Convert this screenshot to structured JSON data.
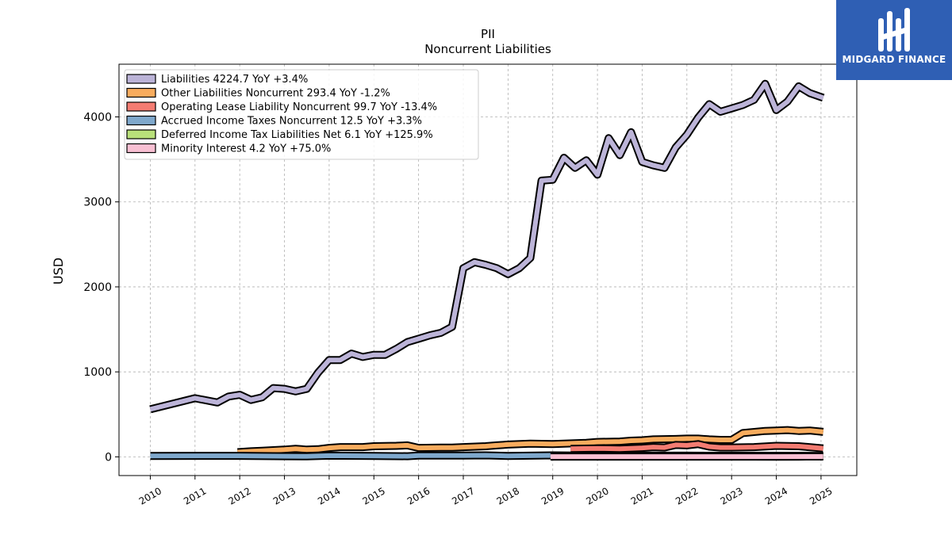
{
  "logo": {
    "text": "MIDGARD FINANCE",
    "background": "#2f5fb4"
  },
  "chart_data": {
    "type": "area",
    "title": "PII",
    "subtitle": "Noncurrent  Liabilities",
    "ylabel": "USD",
    "xlabel": "",
    "xlim": [
      2009.3,
      2025.8
    ],
    "ylim": [
      -220,
      4620
    ],
    "yticks": [
      0,
      1000,
      2000,
      3000,
      4000
    ],
    "xticks": [
      "2010",
      "2011",
      "2012",
      "2013",
      "2014",
      "2015",
      "2016",
      "2017",
      "2018",
      "2019",
      "2020",
      "2021",
      "2022",
      "2023",
      "2024",
      "2025"
    ],
    "grid": true,
    "legend_position": "top-left",
    "series": [
      {
        "name": "Liabilities",
        "legend": "Liabilities  4224.7 YoY +3.4%",
        "color": "#bcb4d8",
        "points": [
          [
            2010.0,
            560
          ],
          [
            2011.0,
            690
          ],
          [
            2011.5,
            640
          ],
          [
            2011.75,
            710
          ],
          [
            2012.0,
            730
          ],
          [
            2012.25,
            670
          ],
          [
            2012.5,
            700
          ],
          [
            2012.75,
            810
          ],
          [
            2013.0,
            800
          ],
          [
            2013.25,
            770
          ],
          [
            2013.5,
            800
          ],
          [
            2013.75,
            990
          ],
          [
            2014.0,
            1140
          ],
          [
            2014.25,
            1140
          ],
          [
            2014.5,
            1215
          ],
          [
            2014.75,
            1175
          ],
          [
            2015.0,
            1200
          ],
          [
            2015.25,
            1200
          ],
          [
            2015.5,
            1270
          ],
          [
            2015.75,
            1350
          ],
          [
            2016.0,
            1390
          ],
          [
            2016.25,
            1430
          ],
          [
            2016.5,
            1460
          ],
          [
            2016.75,
            1530
          ],
          [
            2017.0,
            2220
          ],
          [
            2017.25,
            2290
          ],
          [
            2017.5,
            2260
          ],
          [
            2017.75,
            2220
          ],
          [
            2018.0,
            2150
          ],
          [
            2018.25,
            2220
          ],
          [
            2018.5,
            2340
          ],
          [
            2018.75,
            3250
          ],
          [
            2019.0,
            3260
          ],
          [
            2019.25,
            3520
          ],
          [
            2019.5,
            3400
          ],
          [
            2019.75,
            3490
          ],
          [
            2020.0,
            3320
          ],
          [
            2020.25,
            3750
          ],
          [
            2020.5,
            3550
          ],
          [
            2020.75,
            3820
          ],
          [
            2021.0,
            3470
          ],
          [
            2021.25,
            3430
          ],
          [
            2021.5,
            3400
          ],
          [
            2021.75,
            3640
          ],
          [
            2022.0,
            3790
          ],
          [
            2022.25,
            3990
          ],
          [
            2022.5,
            4150
          ],
          [
            2022.75,
            4060
          ],
          [
            2023.0,
            4100
          ],
          [
            2023.25,
            4140
          ],
          [
            2023.5,
            4200
          ],
          [
            2023.75,
            4390
          ],
          [
            2024.0,
            4080
          ],
          [
            2024.25,
            4180
          ],
          [
            2024.5,
            4360
          ],
          [
            2024.75,
            4280
          ],
          [
            2025.05,
            4224.7
          ]
        ]
      },
      {
        "name": "Other Liabilities Noncurrent",
        "legend": "Other Liabilities Noncurrent  293.4 YoY -1.2%",
        "color": "#f8ac5e",
        "points": [
          [
            2011.95,
            55
          ],
          [
            2012.25,
            65
          ],
          [
            2012.5,
            72
          ],
          [
            2012.75,
            78
          ],
          [
            2013.0,
            85
          ],
          [
            2013.25,
            95
          ],
          [
            2013.5,
            85
          ],
          [
            2013.75,
            90
          ],
          [
            2014.0,
            105
          ],
          [
            2014.25,
            115
          ],
          [
            2014.5,
            115
          ],
          [
            2014.75,
            115
          ],
          [
            2015.0,
            125
          ],
          [
            2015.5,
            130
          ],
          [
            2015.75,
            135
          ],
          [
            2016.0,
            105
          ],
          [
            2016.5,
            108
          ],
          [
            2016.75,
            108
          ],
          [
            2017.0,
            115
          ],
          [
            2017.5,
            125
          ],
          [
            2017.75,
            135
          ],
          [
            2018.0,
            145
          ],
          [
            2018.5,
            155
          ],
          [
            2019.0,
            150
          ],
          [
            2019.5,
            160
          ],
          [
            2019.75,
            165
          ],
          [
            2020.0,
            175
          ],
          [
            2020.5,
            180
          ],
          [
            2020.75,
            190
          ],
          [
            2021.0,
            195
          ],
          [
            2021.25,
            205
          ],
          [
            2021.75,
            210
          ],
          [
            2022.0,
            215
          ],
          [
            2022.25,
            215
          ],
          [
            2022.5,
            205
          ],
          [
            2022.75,
            200
          ],
          [
            2023.0,
            200
          ],
          [
            2023.25,
            280
          ],
          [
            2023.75,
            305
          ],
          [
            2024.0,
            310
          ],
          [
            2024.25,
            315
          ],
          [
            2024.5,
            305
          ],
          [
            2024.75,
            310
          ],
          [
            2025.05,
            293.4
          ]
        ]
      },
      {
        "name": "Operating Lease Liability Noncurrent",
        "legend": "Operating Lease Liability Noncurrent  99.7 YoY -13.4%",
        "color": "#f47c72",
        "points": [
          [
            2019.4,
            95
          ],
          [
            2020.0,
            100
          ],
          [
            2020.5,
            95
          ],
          [
            2021.0,
            105
          ],
          [
            2021.25,
            115
          ],
          [
            2021.5,
            110
          ],
          [
            2021.75,
            140
          ],
          [
            2022.0,
            135
          ],
          [
            2022.25,
            150
          ],
          [
            2022.5,
            120
          ],
          [
            2022.75,
            110
          ],
          [
            2023.0,
            110
          ],
          [
            2023.5,
            115
          ],
          [
            2024.0,
            130
          ],
          [
            2024.5,
            125
          ],
          [
            2025.05,
            99.7
          ]
        ]
      },
      {
        "name": "Accrued Income Taxes Noncurrent",
        "legend": "Accrued Income Taxes Noncurrent  12.5 YoY +3.3%",
        "color": "#7fa8cc",
        "points": [
          [
            2010.0,
            10
          ],
          [
            2012.0,
            12
          ],
          [
            2013.0,
            8
          ],
          [
            2013.5,
            6
          ],
          [
            2014.0,
            14
          ],
          [
            2015.0,
            10
          ],
          [
            2015.75,
            8
          ],
          [
            2016.0,
            15
          ],
          [
            2017.0,
            16
          ],
          [
            2017.5,
            18
          ],
          [
            2018.0,
            10
          ],
          [
            2018.5,
            14
          ],
          [
            2019.0,
            18
          ],
          [
            2019.5,
            15
          ],
          [
            2020.0,
            14
          ],
          [
            2021.0,
            14
          ],
          [
            2022.0,
            14
          ],
          [
            2023.0,
            13
          ],
          [
            2024.0,
            13
          ],
          [
            2025.05,
            12.5
          ]
        ]
      },
      {
        "name": "Deferred Income Tax Liabilities Net",
        "legend": "Deferred Income Tax Liabilities Net  6.1 YoY +125.9%",
        "color": "#b9e07a",
        "points": [
          [
            2022.9,
            5
          ],
          [
            2023.5,
            4
          ],
          [
            2024.0,
            3
          ],
          [
            2024.5,
            3
          ],
          [
            2025.05,
            6.1
          ]
        ]
      },
      {
        "name": "Minority Interest",
        "legend": "Minority Interest  4.2 YoY +75.0%",
        "color": "#f9c0d3",
        "points": [
          [
            2018.95,
            3
          ],
          [
            2020.0,
            3
          ],
          [
            2021.0,
            2.5
          ],
          [
            2022.0,
            3
          ],
          [
            2023.0,
            3
          ],
          [
            2024.0,
            2.5
          ],
          [
            2025.05,
            4.2
          ]
        ]
      }
    ]
  }
}
